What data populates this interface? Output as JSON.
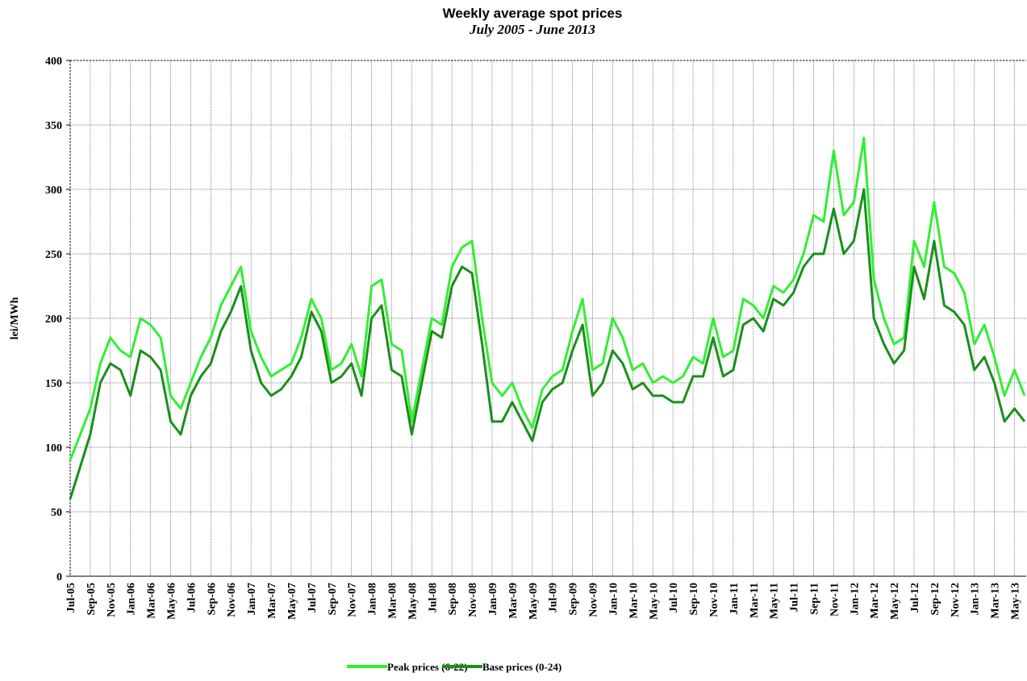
{
  "chart_data": {
    "type": "line",
    "title": "Weekly average spot prices",
    "subtitle": "July 2005 -  June 2013",
    "y_label": "lei/MWh",
    "x": [
      "Jul-05",
      "Aug-05",
      "Sep-05",
      "Oct-05",
      "Nov-05",
      "Dec-05",
      "Jan-06",
      "Feb-06",
      "Mar-06",
      "Apr-06",
      "May-06",
      "Jun-06",
      "Jul-06",
      "Aug-06",
      "Sep-06",
      "Oct-06",
      "Nov-06",
      "Dec-06",
      "Jan-07",
      "Feb-07",
      "Mar-07",
      "Apr-07",
      "May-07",
      "Jun-07",
      "Jul-07",
      "Aug-07",
      "Sep-07",
      "Oct-07",
      "Nov-07",
      "Dec-07",
      "Jan-08",
      "Feb-08",
      "Mar-08",
      "Apr-08",
      "May-08",
      "Jun-08",
      "Jul-08",
      "Aug-08",
      "Sep-08",
      "Oct-08",
      "Nov-08",
      "Dec-08",
      "Jan-09",
      "Feb-09",
      "Mar-09",
      "Apr-09",
      "May-09",
      "Jun-09",
      "Jul-09",
      "Aug-09",
      "Sep-09",
      "Oct-09",
      "Nov-09",
      "Dec-09",
      "Jan-10",
      "Feb-10",
      "Mar-10",
      "Apr-10",
      "May-10",
      "Jun-10",
      "Jul-10",
      "Aug-10",
      "Sep-10",
      "Oct-10",
      "Nov-10",
      "Dec-10",
      "Jan-11",
      "Feb-11",
      "Mar-11",
      "Apr-11",
      "May-11",
      "Jun-11",
      "Jul-11",
      "Aug-11",
      "Sep-11",
      "Oct-11",
      "Nov-11",
      "Dec-11",
      "Jan-12",
      "Feb-12",
      "Mar-12",
      "Apr-12",
      "May-12",
      "Jun-12",
      "Jul-12",
      "Aug-12",
      "Sep-12",
      "Oct-12",
      "Nov-12",
      "Dec-12",
      "Jan-13",
      "Feb-13",
      "Mar-13",
      "Apr-13",
      "May-13",
      "Jun-13"
    ],
    "xticks": [
      "Jul-05",
      "Sep-05",
      "Nov-05",
      "Jan-06",
      "Mar-06",
      "May-06",
      "Jul-06",
      "Sep-06",
      "Nov-06",
      "Jan-07",
      "Mar-07",
      "May-07",
      "Jul-07",
      "Sep-07",
      "Nov-07",
      "Jan-08",
      "Mar-08",
      "May-08",
      "Jul-08",
      "Sep-08",
      "Nov-08",
      "Jan-09",
      "Mar-09",
      "May-09",
      "Jul-09",
      "Sep-09",
      "Nov-09",
      "Jan-10",
      "Mar-10",
      "May-10",
      "Jul-10",
      "Sep-10",
      "Nov-10",
      "Jan-11",
      "Mar-11",
      "May-11",
      "Jul-11",
      "Sep-11",
      "Nov-11",
      "Jan-12",
      "Mar-12",
      "May-12",
      "Jul-12",
      "Sep-12",
      "Nov-12",
      "Jan-13",
      "Mar-13",
      "May-13"
    ],
    "series": [
      {
        "name": "Peak prices (6-22)",
        "color": "#33ee33",
        "values": [
          90,
          110,
          130,
          165,
          185,
          175,
          170,
          200,
          195,
          185,
          140,
          130,
          150,
          170,
          185,
          210,
          225,
          240,
          190,
          170,
          155,
          160,
          165,
          185,
          215,
          200,
          160,
          165,
          180,
          155,
          225,
          230,
          180,
          175,
          120,
          160,
          200,
          195,
          240,
          255,
          260,
          200,
          150,
          140,
          150,
          130,
          115,
          145,
          155,
          160,
          190,
          215,
          160,
          165,
          200,
          185,
          160,
          165,
          150,
          155,
          150,
          155,
          170,
          165,
          200,
          170,
          175,
          215,
          210,
          200,
          225,
          220,
          230,
          250,
          280,
          275,
          330,
          280,
          290,
          340,
          230,
          200,
          180,
          185,
          260,
          240,
          290,
          240,
          235,
          220,
          180,
          195,
          170,
          140,
          160,
          140
        ]
      },
      {
        "name": "Base prices (0-24)",
        "color": "#1a8f1a",
        "values": [
          60,
          85,
          110,
          150,
          165,
          160,
          140,
          175,
          170,
          160,
          120,
          110,
          140,
          155,
          165,
          190,
          205,
          225,
          175,
          150,
          140,
          145,
          155,
          170,
          205,
          190,
          150,
          155,
          165,
          140,
          200,
          210,
          160,
          155,
          110,
          150,
          190,
          185,
          225,
          240,
          235,
          180,
          120,
          120,
          135,
          120,
          105,
          135,
          145,
          150,
          175,
          195,
          140,
          150,
          175,
          165,
          145,
          150,
          140,
          140,
          135,
          135,
          155,
          155,
          185,
          155,
          160,
          195,
          200,
          190,
          215,
          210,
          220,
          240,
          250,
          250,
          285,
          250,
          260,
          300,
          200,
          180,
          165,
          175,
          240,
          215,
          260,
          210,
          205,
          195,
          160,
          170,
          150,
          120,
          130,
          120
        ]
      }
    ],
    "ylim": [
      0,
      400
    ],
    "yticks": [
      0,
      50,
      100,
      150,
      200,
      250,
      300,
      350,
      400
    ],
    "grid": true
  }
}
